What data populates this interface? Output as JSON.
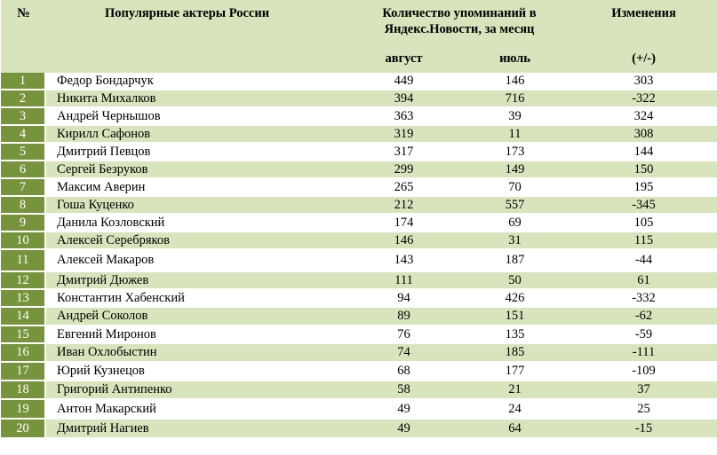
{
  "table": {
    "header": {
      "rank": "№",
      "actor": "Популярные актеры России",
      "mentions_line1": "Количество упоминаний в",
      "mentions_line2": "Яндекс.Новости, за месяц",
      "changes": "Изменения",
      "august": "август",
      "july": "июль",
      "delta": "(+/-)"
    },
    "rows": [
      {
        "rank": "1",
        "name": "Федор Бондарчук",
        "august": "449",
        "july": "146",
        "change": "303"
      },
      {
        "rank": "2",
        "name": "Никита Михалков",
        "august": "394",
        "july": "716",
        "change": "-322"
      },
      {
        "rank": "3",
        "name": "Андрей Чернышов",
        "august": "363",
        "july": "39",
        "change": "324"
      },
      {
        "rank": "4",
        "name": "Кирилл Сафонов",
        "august": "319",
        "july": "11",
        "change": "308"
      },
      {
        "rank": "5",
        "name": "Дмитрий Певцов",
        "august": "317",
        "july": "173",
        "change": "144"
      },
      {
        "rank": "6",
        "name": "Сергей Безруков",
        "august": "299",
        "july": "149",
        "change": "150"
      },
      {
        "rank": "7",
        "name": "Максим Аверин",
        "august": "265",
        "july": "70",
        "change": "195"
      },
      {
        "rank": "8",
        "name": "Гоша Куценко",
        "august": "212",
        "july": "557",
        "change": "-345"
      },
      {
        "rank": "9",
        "name": "Данила Козловский",
        "august": "174",
        "july": "69",
        "change": "105"
      },
      {
        "rank": "10",
        "name": "Алексей Серебряков",
        "august": "146",
        "july": "31",
        "change": "115"
      },
      {
        "rank": "11",
        "name": "Алексей Макаров",
        "august": "143",
        "july": "187",
        "change": "-44"
      },
      {
        "rank": "12",
        "name": "Дмитрий Дюжев",
        "august": "111",
        "july": "50",
        "change": "61"
      },
      {
        "rank": "13",
        "name": "Константин Хабенский",
        "august": "94",
        "july": "426",
        "change": "-332"
      },
      {
        "rank": "14",
        "name": "Андрей Соколов",
        "august": "89",
        "july": "151",
        "change": "-62"
      },
      {
        "rank": "15",
        "name": "Евгений Миронов",
        "august": "76",
        "july": "135",
        "change": "-59"
      },
      {
        "rank": "16",
        "name": "Иван Охлобыстин",
        "august": "74",
        "july": "185",
        "change": "-111"
      },
      {
        "rank": "17",
        "name": "Юрий Кузнецов",
        "august": "68",
        "july": "177",
        "change": "-109"
      },
      {
        "rank": "18",
        "name": "Григорий Антипенко",
        "august": "58",
        "july": "21",
        "change": "37"
      },
      {
        "rank": "19",
        "name": "Антон Макарский",
        "august": "49",
        "july": "24",
        "change": "25"
      },
      {
        "rank": "20",
        "name": "Дмитрий Нагиев",
        "august": "49",
        "july": "64",
        "change": "-15"
      }
    ]
  },
  "colors": {
    "header_bg": "#d8e4bc",
    "rank_bg": "#77933c",
    "alt_row_bg": "#d8e4bc"
  }
}
